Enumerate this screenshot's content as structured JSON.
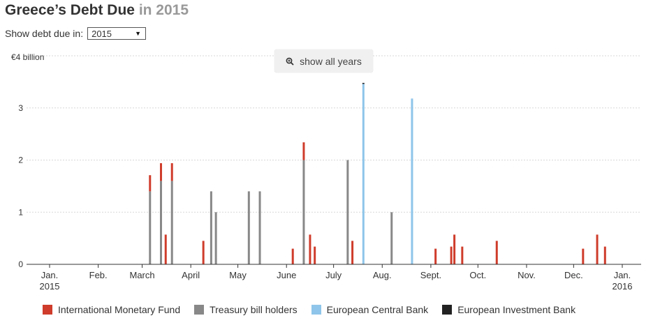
{
  "header": {
    "title_main": "Greece’s Debt Due",
    "title_year": "in 2015"
  },
  "controls": {
    "label": "Show debt due in:",
    "selected_year": "2015"
  },
  "buttons": {
    "show_all_label": "show all years"
  },
  "colors": {
    "imf": "#cf3c2b",
    "tbill": "#888888",
    "ecb": "#8fc5ea",
    "eib": "#222222"
  },
  "chart_data": {
    "type": "bar",
    "stacked": true,
    "x_axis": {
      "type": "date",
      "range": [
        "2015-01-01",
        "2016-01-01"
      ],
      "tick_labels": [
        {
          "date": "2015-01-01",
          "line1": "Jan.",
          "line2": "2015"
        },
        {
          "date": "2015-02-01",
          "line1": "Feb.",
          "line2": ""
        },
        {
          "date": "2015-03-01",
          "line1": "March",
          "line2": ""
        },
        {
          "date": "2015-04-01",
          "line1": "April",
          "line2": ""
        },
        {
          "date": "2015-05-01",
          "line1": "May",
          "line2": ""
        },
        {
          "date": "2015-06-01",
          "line1": "June",
          "line2": ""
        },
        {
          "date": "2015-07-01",
          "line1": "July",
          "line2": ""
        },
        {
          "date": "2015-08-01",
          "line1": "Aug.",
          "line2": ""
        },
        {
          "date": "2015-09-01",
          "line1": "Sept.",
          "line2": ""
        },
        {
          "date": "2015-10-01",
          "line1": "Oct.",
          "line2": ""
        },
        {
          "date": "2015-11-01",
          "line1": "Nov.",
          "line2": ""
        },
        {
          "date": "2015-12-01",
          "line1": "Dec.",
          "line2": ""
        },
        {
          "date": "2016-01-01",
          "line1": "Jan.",
          "line2": "2016"
        }
      ]
    },
    "y_axis": {
      "range": [
        0,
        4
      ],
      "ticks": [
        0,
        1,
        2,
        3,
        4
      ],
      "tick_labels": [
        "0",
        "1",
        "2",
        "3",
        "€4 billion"
      ],
      "grid": true
    },
    "legend_position": "bottom",
    "series": [
      {
        "name": "International Monetary Fund",
        "key": "imf",
        "points": [
          {
            "date": "2015-03-06",
            "value": 0.31
          },
          {
            "date": "2015-03-13",
            "value": 0.34
          },
          {
            "date": "2015-03-16",
            "value": 0.57
          },
          {
            "date": "2015-03-20",
            "value": 0.34
          },
          {
            "date": "2015-04-09",
            "value": 0.45
          },
          {
            "date": "2015-06-05",
            "value": 0.3
          },
          {
            "date": "2015-06-12",
            "value": 0.34
          },
          {
            "date": "2015-06-16",
            "value": 0.57
          },
          {
            "date": "2015-06-19",
            "value": 0.34
          },
          {
            "date": "2015-07-13",
            "value": 0.45
          },
          {
            "date": "2015-09-04",
            "value": 0.3
          },
          {
            "date": "2015-09-14",
            "value": 0.34
          },
          {
            "date": "2015-09-16",
            "value": 0.57
          },
          {
            "date": "2015-09-21",
            "value": 0.34
          },
          {
            "date": "2015-10-13",
            "value": 0.45
          },
          {
            "date": "2015-12-07",
            "value": 0.3
          },
          {
            "date": "2015-12-16",
            "value": 0.57
          },
          {
            "date": "2015-12-21",
            "value": 0.34
          }
        ]
      },
      {
        "name": "Treasury bill holders",
        "key": "tbill",
        "points": [
          {
            "date": "2015-03-06",
            "value": 1.4
          },
          {
            "date": "2015-03-13",
            "value": 1.6
          },
          {
            "date": "2015-03-20",
            "value": 1.6
          },
          {
            "date": "2015-04-14",
            "value": 1.4
          },
          {
            "date": "2015-04-17",
            "value": 1.0
          },
          {
            "date": "2015-05-08",
            "value": 1.4
          },
          {
            "date": "2015-05-15",
            "value": 1.4
          },
          {
            "date": "2015-06-12",
            "value": 2.0
          },
          {
            "date": "2015-07-10",
            "value": 2.0
          },
          {
            "date": "2015-08-07",
            "value": 1.0
          }
        ]
      },
      {
        "name": "European Central Bank",
        "key": "ecb",
        "points": [
          {
            "date": "2015-07-20",
            "value": 3.46
          },
          {
            "date": "2015-08-20",
            "value": 3.18
          }
        ]
      },
      {
        "name": "European Investment Bank",
        "key": "eib",
        "points": [
          {
            "date": "2015-07-20",
            "value": 0.02
          }
        ]
      }
    ]
  }
}
